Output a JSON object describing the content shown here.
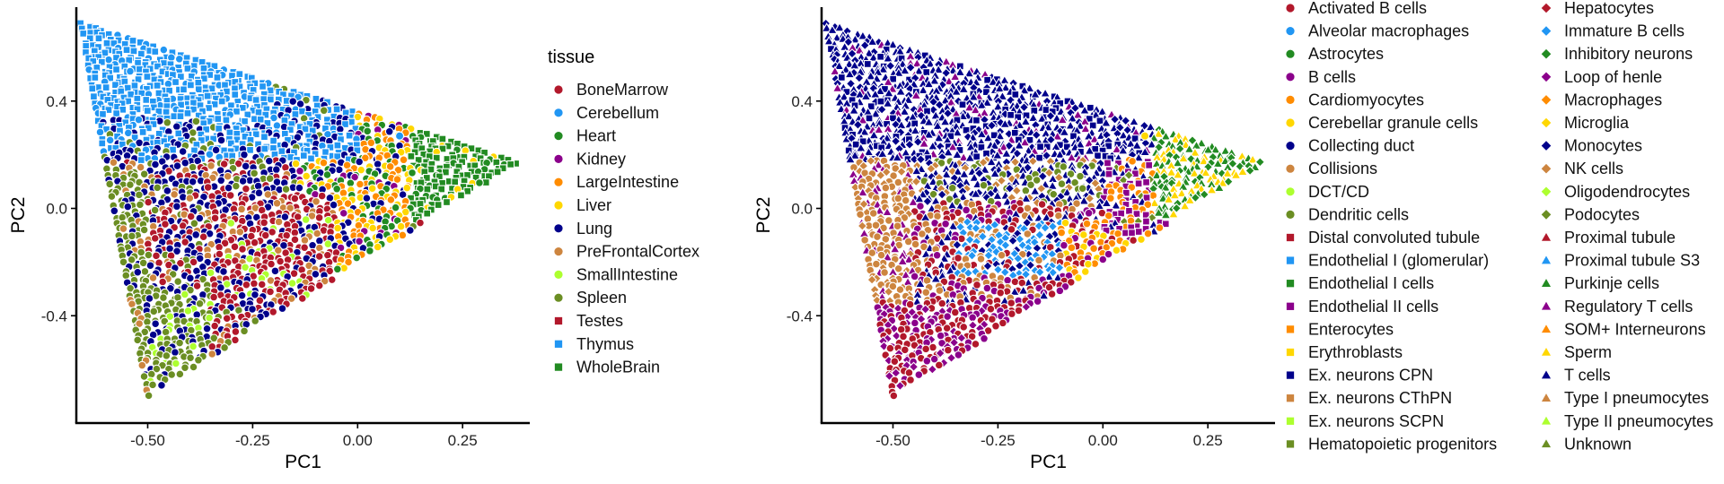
{
  "chart_data": [
    {
      "type": "scatter",
      "title": "",
      "xlabel": "PC1",
      "ylabel": "PC2",
      "xlim": [
        -0.67,
        0.41
      ],
      "ylim": [
        -0.8,
        0.75
      ],
      "x_ticks": [
        -0.5,
        -0.25,
        0.0,
        0.25
      ],
      "x_tick_labels": [
        "-0.50",
        "-0.25",
        "0.00",
        "0.25"
      ],
      "y_ticks": [
        -0.4,
        0.0,
        0.4
      ],
      "y_tick_labels": [
        "-0.4",
        "0.0",
        "0.4"
      ],
      "grid": false,
      "legend": {
        "title": "tissue",
        "placement": "right",
        "entries": [
          {
            "label": "BoneMarrow",
            "color": "#B2182B",
            "shape": "circle"
          },
          {
            "label": "Cerebellum",
            "color": "#2196F3",
            "shape": "circle"
          },
          {
            "label": "Heart",
            "color": "#228B22",
            "shape": "circle"
          },
          {
            "label": "Kidney",
            "color": "#8B008B",
            "shape": "circle"
          },
          {
            "label": "LargeIntestine",
            "color": "#FF8C00",
            "shape": "circle"
          },
          {
            "label": "Liver",
            "color": "#FFD700",
            "shape": "circle"
          },
          {
            "label": "Lung",
            "color": "#00008B",
            "shape": "circle"
          },
          {
            "label": "PreFrontalCortex",
            "color": "#CD853F",
            "shape": "circle"
          },
          {
            "label": "SmallIntestine",
            "color": "#ADFF2F",
            "shape": "circle"
          },
          {
            "label": "Spleen",
            "color": "#6B8E23",
            "shape": "circle"
          },
          {
            "label": "Testes",
            "color": "#B2182B",
            "shape": "square"
          },
          {
            "label": "Thymus",
            "color": "#2196F3",
            "shape": "square"
          },
          {
            "label": "WholeBrain",
            "color": "#228B22",
            "shape": "square"
          }
        ]
      },
      "notable_points": [
        {
          "x": 0.1,
          "y": 0.27,
          "series": "Cerebellum"
        }
      ]
    },
    {
      "type": "scatter",
      "title": "",
      "xlabel": "PC1",
      "ylabel": "PC2",
      "xlim": [
        -0.67,
        0.41
      ],
      "ylim": [
        -0.8,
        0.75
      ],
      "x_ticks": [
        -0.5,
        -0.25,
        0.0,
        0.25
      ],
      "x_tick_labels": [
        "-0.50",
        "-0.25",
        "0.00",
        "0.25"
      ],
      "y_ticks": [
        -0.4,
        0.0,
        0.4
      ],
      "y_tick_labels": [
        "-0.4",
        "0.0",
        "0.4"
      ],
      "grid": false,
      "legend": {
        "title": "",
        "placement": "right",
        "entries": [
          {
            "label": "Activated B cells",
            "color": "#B2182B",
            "shape": "circle"
          },
          {
            "label": "Alveolar macrophages",
            "color": "#2196F3",
            "shape": "circle"
          },
          {
            "label": "Astrocytes",
            "color": "#228B22",
            "shape": "circle"
          },
          {
            "label": "B cells",
            "color": "#8B008B",
            "shape": "circle"
          },
          {
            "label": "Cardiomyocytes",
            "color": "#FF8C00",
            "shape": "circle"
          },
          {
            "label": "Cerebellar granule cells",
            "color": "#FFD700",
            "shape": "circle"
          },
          {
            "label": "Collecting duct",
            "color": "#00008B",
            "shape": "circle"
          },
          {
            "label": "Collisions",
            "color": "#CD853F",
            "shape": "circle"
          },
          {
            "label": "DCT/CD",
            "color": "#ADFF2F",
            "shape": "circle"
          },
          {
            "label": "Dendritic cells",
            "color": "#6B8E23",
            "shape": "circle"
          },
          {
            "label": "Distal convoluted tubule",
            "color": "#B2182B",
            "shape": "square"
          },
          {
            "label": "Endothelial I (glomerular)",
            "color": "#2196F3",
            "shape": "square"
          },
          {
            "label": "Endothelial I cells",
            "color": "#228B22",
            "shape": "square"
          },
          {
            "label": "Endothelial II cells",
            "color": "#8B008B",
            "shape": "square"
          },
          {
            "label": "Enterocytes",
            "color": "#FF8C00",
            "shape": "square"
          },
          {
            "label": "Erythroblasts",
            "color": "#FFD700",
            "shape": "square"
          },
          {
            "label": "Ex. neurons CPN",
            "color": "#00008B",
            "shape": "square"
          },
          {
            "label": "Ex. neurons CThPN",
            "color": "#CD853F",
            "shape": "square"
          },
          {
            "label": "Ex. neurons SCPN",
            "color": "#ADFF2F",
            "shape": "square"
          },
          {
            "label": "Hematopoietic progenitors",
            "color": "#6B8E23",
            "shape": "square"
          },
          {
            "label": "Hepatocytes",
            "color": "#B2182B",
            "shape": "diamond"
          },
          {
            "label": "Immature B cells",
            "color": "#2196F3",
            "shape": "diamond"
          },
          {
            "label": "Inhibitory neurons",
            "color": "#228B22",
            "shape": "diamond"
          },
          {
            "label": "Loop of henle",
            "color": "#8B008B",
            "shape": "diamond"
          },
          {
            "label": "Macrophages",
            "color": "#FF8C00",
            "shape": "diamond"
          },
          {
            "label": "Microglia",
            "color": "#FFD700",
            "shape": "diamond"
          },
          {
            "label": "Monocytes",
            "color": "#00008B",
            "shape": "diamond"
          },
          {
            "label": "NK cells",
            "color": "#CD853F",
            "shape": "diamond"
          },
          {
            "label": "Oligodendrocytes",
            "color": "#ADFF2F",
            "shape": "diamond"
          },
          {
            "label": "Podocytes",
            "color": "#6B8E23",
            "shape": "diamond"
          },
          {
            "label": "Proximal tubule",
            "color": "#B2182B",
            "shape": "triangle"
          },
          {
            "label": "Proximal tubule S3",
            "color": "#2196F3",
            "shape": "triangle"
          },
          {
            "label": "Purkinje cells",
            "color": "#228B22",
            "shape": "triangle"
          },
          {
            "label": "Regulatory T cells",
            "color": "#8B008B",
            "shape": "triangle"
          },
          {
            "label": "SOM+ Interneurons",
            "color": "#FF8C00",
            "shape": "triangle"
          },
          {
            "label": "Sperm",
            "color": "#FFD700",
            "shape": "triangle"
          },
          {
            "label": "T cells",
            "color": "#00008B",
            "shape": "triangle"
          },
          {
            "label": "Type I pneumocytes",
            "color": "#CD853F",
            "shape": "triangle"
          },
          {
            "label": "Type II pneumocytes",
            "color": "#ADFF2F",
            "shape": "triangle"
          },
          {
            "label": "Unknown",
            "color": "#6B8E23",
            "shape": "triangle"
          }
        ]
      },
      "notable_points": [
        {
          "x": 0.1,
          "y": 0.27,
          "series": "Cerebellar granule cells"
        }
      ]
    }
  ]
}
